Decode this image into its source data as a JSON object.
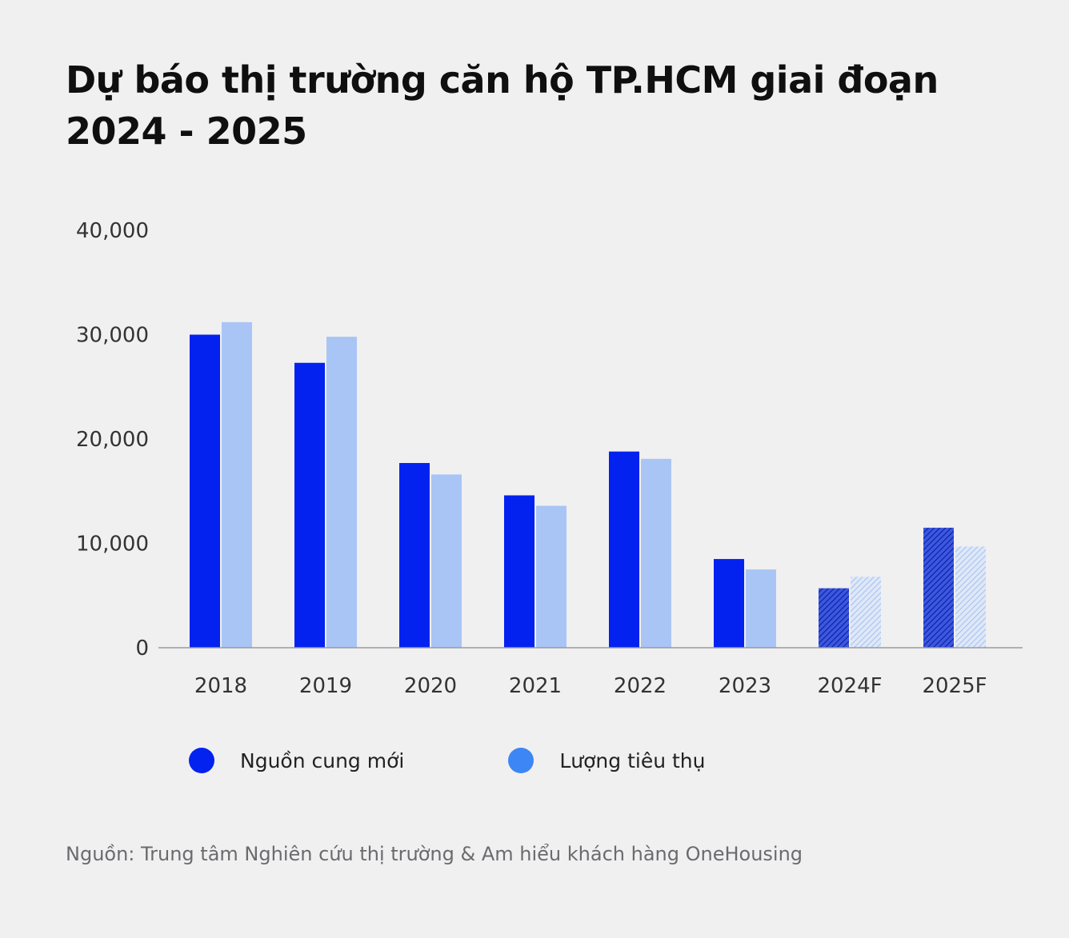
{
  "title_line1": "Dự báo thị trường căn hộ TP.HCM giai đoạn",
  "title_line2": "2024 - 2025",
  "source": "Nguồn: Trung tâm Nghiên cứu thị trường & Am hiểu khách hàng OneHousing",
  "colors": {
    "supply": "#0322f0",
    "absorption": "#a9c5f5",
    "legend_absorption": "#3d86f5",
    "forecast_supply": "#1a3ad6",
    "forecast_absorption": "#a9c5f5"
  },
  "chart_data": {
    "type": "bar",
    "title": "Dự báo thị trường căn hộ TP.HCM giai đoạn 2024 - 2025",
    "categories": [
      "2018",
      "2019",
      "2020",
      "2021",
      "2022",
      "2023",
      "2024F",
      "2025F"
    ],
    "forecast_categories": [
      "2024F",
      "2025F"
    ],
    "series": [
      {
        "name": "Nguồn cung mới",
        "values": [
          30000,
          27300,
          17700,
          14600,
          18800,
          8500,
          5700,
          11500
        ]
      },
      {
        "name": "Lượng tiêu thụ",
        "values": [
          31200,
          29800,
          16600,
          13600,
          18100,
          7500,
          6800,
          9700
        ]
      }
    ],
    "yticks": [
      0,
      10000,
      20000,
      30000,
      40000
    ],
    "ytick_labels": [
      "0",
      "10,000",
      "20,000",
      "30,000",
      "40,000"
    ],
    "ylim": [
      0,
      40000
    ],
    "grid": false,
    "legend": "bottom-left"
  }
}
